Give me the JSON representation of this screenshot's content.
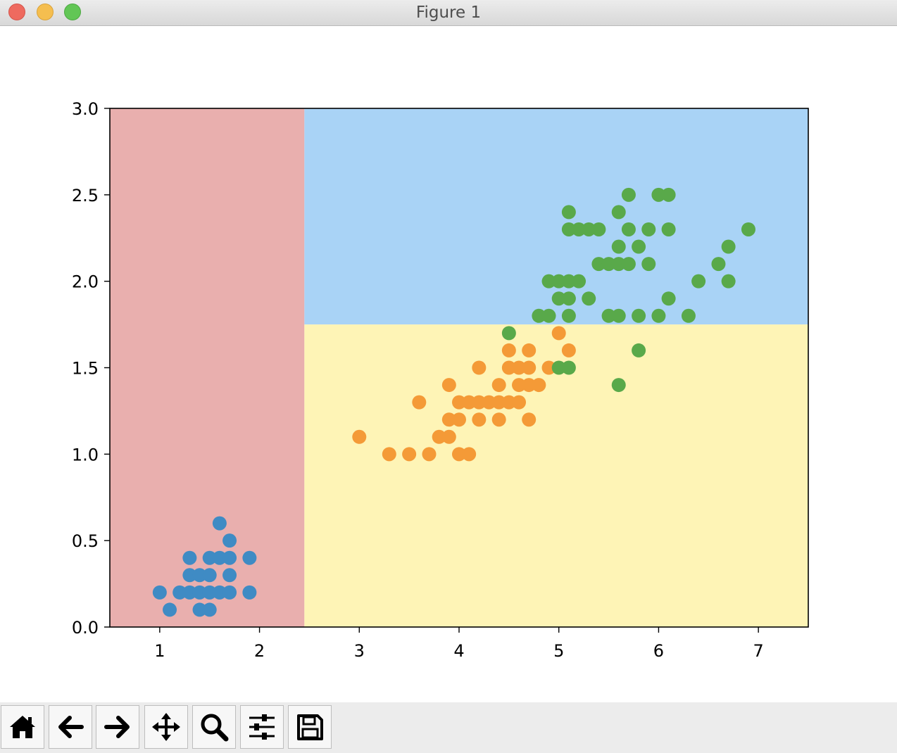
{
  "window": {
    "title": "Figure 1"
  },
  "toolbar": {
    "buttons": [
      {
        "name": "home-button",
        "icon": "home-icon"
      },
      {
        "name": "back-button",
        "icon": "arrow-left-icon"
      },
      {
        "name": "forward-button",
        "icon": "arrow-right-icon"
      },
      {
        "name": "pan-button",
        "icon": "move-icon"
      },
      {
        "name": "zoom-button",
        "icon": "search-icon"
      },
      {
        "name": "configure-subplots-button",
        "icon": "sliders-icon"
      },
      {
        "name": "save-button",
        "icon": "save-icon"
      }
    ]
  },
  "chart_data": {
    "type": "scatter",
    "title": "",
    "xlabel": "",
    "ylabel": "",
    "xlim": [
      0.5,
      7.5
    ],
    "ylim": [
      0.0,
      3.0
    ],
    "xticks": [
      "1",
      "2",
      "3",
      "4",
      "5",
      "6",
      "7"
    ],
    "yticks": [
      "0.0",
      "0.5",
      "1.0",
      "1.5",
      "2.0",
      "2.5",
      "3.0"
    ],
    "grid": false,
    "legend": "none",
    "regions": [
      {
        "x": [
          0.5,
          2.45
        ],
        "y": [
          0.0,
          3.0
        ],
        "color": "#e9afae"
      },
      {
        "x": [
          2.45,
          7.5
        ],
        "y": [
          1.75,
          3.0
        ],
        "color": "#a9d3f6"
      },
      {
        "x": [
          2.45,
          7.5
        ],
        "y": [
          0.0,
          1.75
        ],
        "color": "#fef4b6"
      }
    ],
    "series": [
      {
        "color": "#3f8bc4",
        "points": [
          [
            1.0,
            0.2
          ],
          [
            1.1,
            0.1
          ],
          [
            1.2,
            0.2
          ],
          [
            1.3,
            0.2
          ],
          [
            1.3,
            0.3
          ],
          [
            1.3,
            0.4
          ],
          [
            1.4,
            0.1
          ],
          [
            1.4,
            0.2
          ],
          [
            1.4,
            0.3
          ],
          [
            1.5,
            0.1
          ],
          [
            1.5,
            0.2
          ],
          [
            1.5,
            0.3
          ],
          [
            1.5,
            0.4
          ],
          [
            1.6,
            0.2
          ],
          [
            1.6,
            0.4
          ],
          [
            1.6,
            0.6
          ],
          [
            1.7,
            0.2
          ],
          [
            1.7,
            0.3
          ],
          [
            1.7,
            0.4
          ],
          [
            1.7,
            0.5
          ],
          [
            1.9,
            0.2
          ],
          [
            1.9,
            0.4
          ]
        ]
      },
      {
        "color": "#f49a37",
        "points": [
          [
            3.0,
            1.1
          ],
          [
            3.3,
            1.0
          ],
          [
            3.5,
            1.0
          ],
          [
            3.6,
            1.3
          ],
          [
            3.7,
            1.0
          ],
          [
            3.8,
            1.1
          ],
          [
            3.9,
            1.1
          ],
          [
            3.9,
            1.2
          ],
          [
            3.9,
            1.4
          ],
          [
            4.0,
            1.0
          ],
          [
            4.0,
            1.2
          ],
          [
            4.0,
            1.3
          ],
          [
            4.1,
            1.0
          ],
          [
            4.1,
            1.3
          ],
          [
            4.2,
            1.2
          ],
          [
            4.2,
            1.3
          ],
          [
            4.2,
            1.5
          ],
          [
            4.3,
            1.3
          ],
          [
            4.4,
            1.2
          ],
          [
            4.4,
            1.3
          ],
          [
            4.4,
            1.4
          ],
          [
            4.5,
            1.3
          ],
          [
            4.5,
            1.5
          ],
          [
            4.5,
            1.6
          ],
          [
            4.6,
            1.3
          ],
          [
            4.6,
            1.4
          ],
          [
            4.6,
            1.5
          ],
          [
            4.7,
            1.2
          ],
          [
            4.7,
            1.4
          ],
          [
            4.7,
            1.5
          ],
          [
            4.7,
            1.6
          ],
          [
            4.8,
            1.4
          ],
          [
            4.9,
            1.5
          ],
          [
            5.0,
            1.7
          ],
          [
            5.1,
            1.6
          ]
        ]
      },
      {
        "color": "#59a94a",
        "points": [
          [
            4.5,
            1.7
          ],
          [
            4.8,
            1.8
          ],
          [
            4.9,
            1.8
          ],
          [
            4.9,
            2.0
          ],
          [
            5.0,
            1.5
          ],
          [
            5.0,
            1.9
          ],
          [
            5.0,
            2.0
          ],
          [
            5.1,
            1.5
          ],
          [
            5.1,
            1.8
          ],
          [
            5.1,
            1.9
          ],
          [
            5.1,
            2.0
          ],
          [
            5.1,
            2.3
          ],
          [
            5.1,
            2.4
          ],
          [
            5.2,
            2.0
          ],
          [
            5.2,
            2.3
          ],
          [
            5.3,
            1.9
          ],
          [
            5.3,
            2.3
          ],
          [
            5.4,
            2.1
          ],
          [
            5.4,
            2.3
          ],
          [
            5.5,
            1.8
          ],
          [
            5.5,
            2.1
          ],
          [
            5.6,
            1.4
          ],
          [
            5.6,
            1.8
          ],
          [
            5.6,
            2.1
          ],
          [
            5.6,
            2.2
          ],
          [
            5.6,
            2.4
          ],
          [
            5.7,
            2.1
          ],
          [
            5.7,
            2.3
          ],
          [
            5.7,
            2.5
          ],
          [
            5.8,
            1.6
          ],
          [
            5.8,
            1.8
          ],
          [
            5.8,
            2.2
          ],
          [
            5.9,
            2.1
          ],
          [
            5.9,
            2.3
          ],
          [
            6.0,
            1.8
          ],
          [
            6.0,
            2.5
          ],
          [
            6.1,
            1.9
          ],
          [
            6.1,
            2.3
          ],
          [
            6.1,
            2.5
          ],
          [
            6.3,
            1.8
          ],
          [
            6.4,
            2.0
          ],
          [
            6.6,
            2.1
          ],
          [
            6.7,
            2.0
          ],
          [
            6.7,
            2.2
          ],
          [
            6.9,
            2.3
          ]
        ]
      }
    ]
  }
}
